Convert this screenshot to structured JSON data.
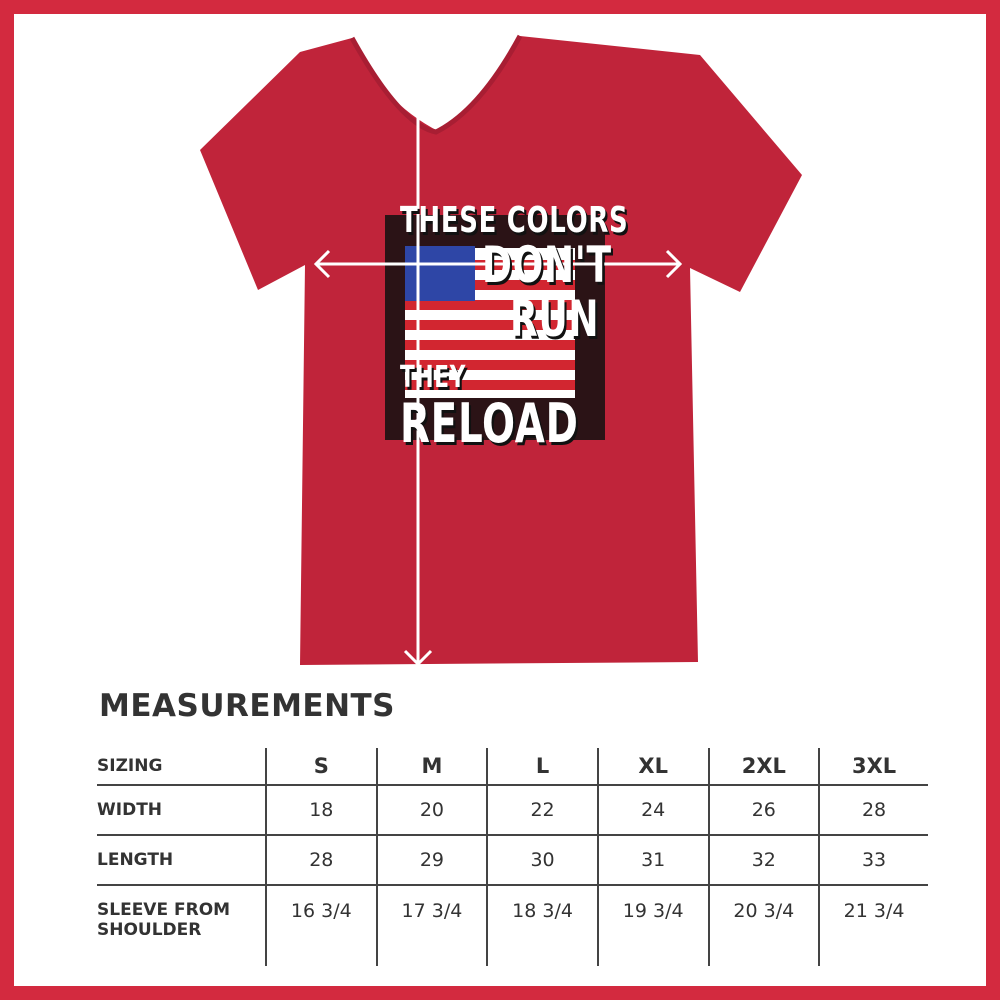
{
  "design_text": {
    "line1": "THESE COLORS",
    "line2": "DON'T",
    "line3": "RUN",
    "line4": "THEY",
    "line5": "RELOAD"
  },
  "colors": {
    "border": "#d32a3f",
    "shirt": "#c0243a",
    "text": "#333333"
  },
  "title": "MEASUREMENTS",
  "table": {
    "header": [
      "SIZING",
      "S",
      "M",
      "L",
      "XL",
      "2XL",
      "3XL"
    ],
    "rows": [
      [
        "WIDTH",
        "18",
        "20",
        "22",
        "24",
        "26",
        "28"
      ],
      [
        "LENGTH",
        "28",
        "29",
        "30",
        "31",
        "32",
        "33"
      ],
      [
        "SLEEVE FROM SHOULDER",
        "16 3/4",
        "17 3/4",
        "18 3/4",
        "19 3/4",
        "20 3/4",
        "21 3/4"
      ]
    ]
  }
}
